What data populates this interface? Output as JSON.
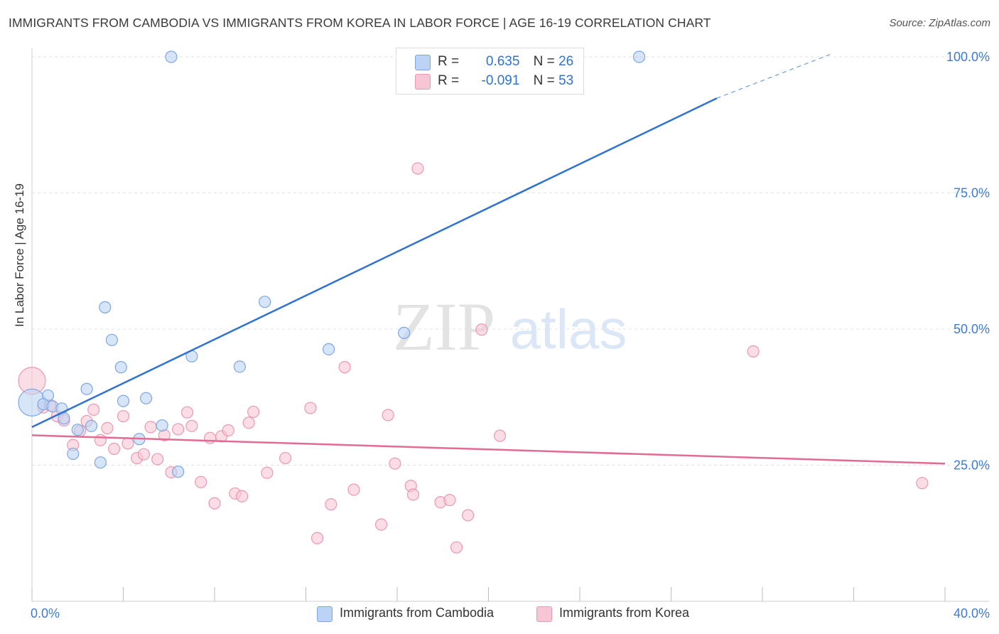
{
  "title": "IMMIGRANTS FROM CAMBODIA VS IMMIGRANTS FROM KOREA IN LABOR FORCE | AGE 16-19 CORRELATION CHART",
  "source": "Source: ZipAtlas.com",
  "watermark": {
    "zip": "ZIP",
    "atlas": "atlas"
  },
  "legend": {
    "cambodia": {
      "r_label": "R =",
      "r_value": "0.635",
      "n_label": "N =",
      "n_value": "26"
    },
    "korea": {
      "r_label": "R =",
      "r_value": "-0.091",
      "n_label": "N =",
      "n_value": "53"
    }
  },
  "bottom_legend": {
    "cambodia": "Immigrants from Cambodia",
    "korea": "Immigrants from Korea"
  },
  "colors": {
    "cambodia_fill": "#bcd3f5",
    "cambodia_stroke": "#7da7e3",
    "cambodia_line": "#2f72d0",
    "korea_fill": "#f7c6d4",
    "korea_stroke": "#ec98b2",
    "korea_line": "#e36a95",
    "tick_text": "#3f7bd0",
    "grid": "#e2e2e2"
  },
  "chart_data": {
    "type": "scatter",
    "title": "IMMIGRANTS FROM CAMBODIA VS IMMIGRANTS FROM KOREA IN LABOR FORCE | AGE 16-19 CORRELATION CHART",
    "xlabel": "",
    "ylabel": "In Labor Force | Age 16-19",
    "xlim": [
      0,
      40
    ],
    "ylim": [
      0,
      100
    ],
    "x_tick_labels": [
      "0.0%",
      "40.0%"
    ],
    "y_ticks": [
      25,
      50,
      75,
      100
    ],
    "y_tick_labels": [
      "25.0%",
      "50.0%",
      "75.0%",
      "100.0%"
    ],
    "grid": true,
    "series": [
      {
        "name": "Immigrants from Cambodia",
        "r": 0.635,
        "n": 26,
        "trend": {
          "x0": 0,
          "y0": 32.0,
          "x1": 30.0,
          "y1": 92.4,
          "dashed_to_x": 35.0,
          "dashed_to_y": 100.5
        },
        "points": [
          {
            "x": 0.0,
            "y": 36.5,
            "big": true
          },
          {
            "x": 0.7,
            "y": 37.8
          },
          {
            "x": 0.5,
            "y": 36.2
          },
          {
            "x": 0.9,
            "y": 35.8
          },
          {
            "x": 1.3,
            "y": 35.4
          },
          {
            "x": 1.4,
            "y": 33.6
          },
          {
            "x": 1.8,
            "y": 27.1
          },
          {
            "x": 2.0,
            "y": 31.5
          },
          {
            "x": 2.4,
            "y": 39.0
          },
          {
            "x": 2.6,
            "y": 32.2
          },
          {
            "x": 3.0,
            "y": 25.5
          },
          {
            "x": 3.2,
            "y": 54.0
          },
          {
            "x": 3.5,
            "y": 48.0
          },
          {
            "x": 3.9,
            "y": 43.0
          },
          {
            "x": 4.0,
            "y": 36.8
          },
          {
            "x": 4.7,
            "y": 29.8
          },
          {
            "x": 5.0,
            "y": 37.3
          },
          {
            "x": 5.7,
            "y": 32.3
          },
          {
            "x": 6.1,
            "y": 100.0
          },
          {
            "x": 6.4,
            "y": 23.8
          },
          {
            "x": 7.0,
            "y": 45.0
          },
          {
            "x": 9.1,
            "y": 43.1
          },
          {
            "x": 10.2,
            "y": 55.0
          },
          {
            "x": 13.0,
            "y": 46.3
          },
          {
            "x": 16.3,
            "y": 49.3
          },
          {
            "x": 26.6,
            "y": 100.0
          }
        ]
      },
      {
        "name": "Immigrants from Korea",
        "r": -0.091,
        "n": 53,
        "trend": {
          "x0": 0,
          "y0": 30.5,
          "x1": 40,
          "y1": 25.3
        },
        "points": [
          {
            "x": 0.0,
            "y": 40.5,
            "big": true
          },
          {
            "x": 0.5,
            "y": 35.6
          },
          {
            "x": 0.8,
            "y": 36.0
          },
          {
            "x": 1.1,
            "y": 34.0
          },
          {
            "x": 1.4,
            "y": 33.2
          },
          {
            "x": 1.8,
            "y": 28.7
          },
          {
            "x": 2.1,
            "y": 31.3
          },
          {
            "x": 2.4,
            "y": 33.1
          },
          {
            "x": 2.7,
            "y": 35.2
          },
          {
            "x": 3.0,
            "y": 29.6
          },
          {
            "x": 3.3,
            "y": 31.8
          },
          {
            "x": 3.6,
            "y": 28.0
          },
          {
            "x": 4.0,
            "y": 34.0
          },
          {
            "x": 4.2,
            "y": 29.0
          },
          {
            "x": 4.6,
            "y": 26.3
          },
          {
            "x": 4.9,
            "y": 27.0
          },
          {
            "x": 5.2,
            "y": 32.0
          },
          {
            "x": 5.5,
            "y": 26.1
          },
          {
            "x": 5.8,
            "y": 30.5
          },
          {
            "x": 6.1,
            "y": 23.7
          },
          {
            "x": 6.4,
            "y": 31.6
          },
          {
            "x": 6.8,
            "y": 34.7
          },
          {
            "x": 7.0,
            "y": 32.2
          },
          {
            "x": 7.4,
            "y": 21.9
          },
          {
            "x": 7.8,
            "y": 30.0
          },
          {
            "x": 8.0,
            "y": 18.0
          },
          {
            "x": 8.3,
            "y": 30.3
          },
          {
            "x": 8.6,
            "y": 31.4
          },
          {
            "x": 8.9,
            "y": 19.8
          },
          {
            "x": 9.2,
            "y": 19.3
          },
          {
            "x": 9.5,
            "y": 32.8
          },
          {
            "x": 9.7,
            "y": 34.8
          },
          {
            "x": 10.3,
            "y": 23.6
          },
          {
            "x": 11.1,
            "y": 26.3
          },
          {
            "x": 12.2,
            "y": 35.5
          },
          {
            "x": 12.5,
            "y": 11.6
          },
          {
            "x": 13.1,
            "y": 17.8
          },
          {
            "x": 13.7,
            "y": 43.0
          },
          {
            "x": 14.1,
            "y": 20.5
          },
          {
            "x": 15.3,
            "y": 14.1
          },
          {
            "x": 15.6,
            "y": 34.2
          },
          {
            "x": 15.9,
            "y": 25.3
          },
          {
            "x": 16.6,
            "y": 21.2
          },
          {
            "x": 16.7,
            "y": 19.6
          },
          {
            "x": 16.9,
            "y": 79.5
          },
          {
            "x": 17.9,
            "y": 18.2
          },
          {
            "x": 18.3,
            "y": 18.6
          },
          {
            "x": 18.6,
            "y": 9.9
          },
          {
            "x": 19.1,
            "y": 15.8
          },
          {
            "x": 19.7,
            "y": 49.9
          },
          {
            "x": 20.5,
            "y": 30.4
          },
          {
            "x": 31.6,
            "y": 45.9
          },
          {
            "x": 39.0,
            "y": 21.7
          }
        ]
      }
    ]
  }
}
